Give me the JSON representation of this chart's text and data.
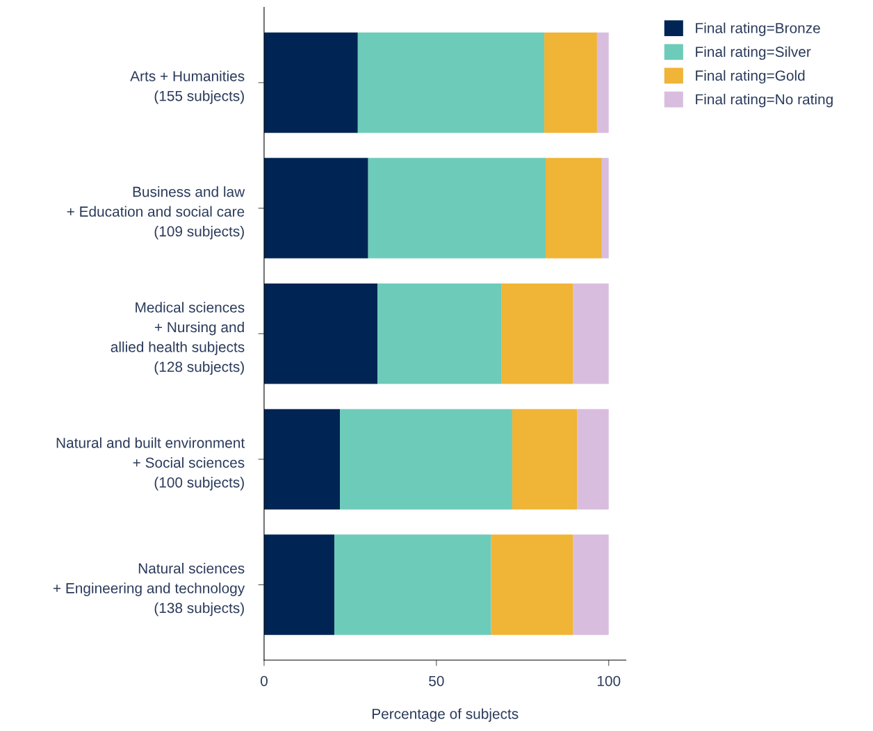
{
  "chart_data": {
    "type": "bar",
    "orientation": "horizontal",
    "stacked": true,
    "xlabel": "Percentage of subjects",
    "categories": [
      "Arts + Humanities\n(155 subjects)",
      "Business and law\n+ Education and social care\n(109 subjects)",
      "Medical sciences\n+ Nursing and\nallied health subjects\n(128 subjects)",
      "Natural and built environment\n+ Social sciences\n(100 subjects)",
      "Natural sciences\n+ Engineering and technology\n(138 subjects)"
    ],
    "series": [
      {
        "name": "Final rating=Bronze",
        "color": "#002554",
        "values": [
          27.2,
          30.2,
          32.9,
          22.0,
          20.4
        ]
      },
      {
        "name": "Final rating=Silver",
        "color": "#6dcbb9",
        "values": [
          54.1,
          51.5,
          35.9,
          50.0,
          45.5
        ]
      },
      {
        "name": "Final rating=Gold",
        "color": "#f0b437",
        "values": [
          15.3,
          16.3,
          20.9,
          18.9,
          23.8
        ]
      },
      {
        "name": "Final rating=No rating",
        "color": "#d9bddf",
        "values": [
          3.4,
          2.0,
          10.3,
          9.1,
          10.3
        ]
      }
    ],
    "xlim": [
      0,
      105
    ],
    "xticks": [
      0,
      50,
      100
    ],
    "grid": false,
    "legend": "top right"
  }
}
